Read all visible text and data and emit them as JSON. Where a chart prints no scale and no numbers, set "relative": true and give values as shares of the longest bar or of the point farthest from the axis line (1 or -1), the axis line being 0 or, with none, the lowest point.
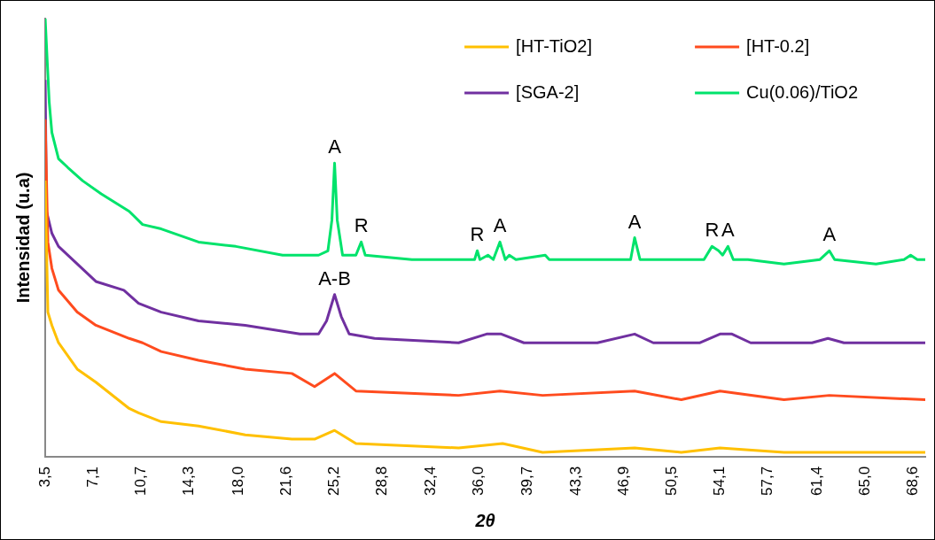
{
  "chart_data": {
    "type": "line",
    "relative": true,
    "xlabel": "2θ",
    "ylabel": "Intensidad (u.a)",
    "legend": "top right",
    "marker": "none",
    "line_style": "solid",
    "grid": false,
    "xlim": [
      3.5,
      69.5
    ],
    "xticks": [
      {
        "value": 3.5,
        "label": "3,5"
      },
      {
        "value": 7.1,
        "label": "7,1"
      },
      {
        "value": 10.7,
        "label": "10,7"
      },
      {
        "value": 14.3,
        "label": "14,3"
      },
      {
        "value": 18.0,
        "label": "18,0"
      },
      {
        "value": 21.6,
        "label": "21,6"
      },
      {
        "value": 25.2,
        "label": "25,2"
      },
      {
        "value": 28.8,
        "label": "28,8"
      },
      {
        "value": 32.4,
        "label": "32,4"
      },
      {
        "value": 36.0,
        "label": "36,0"
      },
      {
        "value": 39.7,
        "label": "39,7"
      },
      {
        "value": 43.3,
        "label": "43,3"
      },
      {
        "value": 46.9,
        "label": "46,9"
      },
      {
        "value": 50.5,
        "label": "50,5"
      },
      {
        "value": 54.1,
        "label": "54,1"
      },
      {
        "value": 57.7,
        "label": "57,7"
      },
      {
        "value": 61.4,
        "label": "61,4"
      },
      {
        "value": 65.0,
        "label": "65,0"
      },
      {
        "value": 68.6,
        "label": "68,6"
      }
    ],
    "series": [
      {
        "name": "[HT-TiO2]",
        "color": "#ffc000",
        "x": [
          3.5,
          3.7,
          4.0,
          4.5,
          5.9,
          7.3,
          9.8,
          10.5,
          12.2,
          15.0,
          18.5,
          22.0,
          23.7,
          25.2,
          26.8,
          34.5,
          37.8,
          40.8,
          47.7,
          51.2,
          54.1,
          58.9,
          62.3,
          69.5
        ],
        "values": [
          0.63,
          0.33,
          0.3,
          0.26,
          0.2,
          0.17,
          0.11,
          0.1,
          0.08,
          0.07,
          0.05,
          0.04,
          0.04,
          0.06,
          0.03,
          0.02,
          0.03,
          0.01,
          0.02,
          0.01,
          0.02,
          0.01,
          0.01,
          0.01
        ]
      },
      {
        "name": "[HT-0.2]",
        "color": "#ff4b1e",
        "x": [
          3.5,
          3.7,
          4.0,
          4.5,
          5.9,
          7.3,
          9.8,
          10.8,
          12.2,
          15.0,
          18.5,
          22.0,
          23.7,
          25.2,
          26.8,
          34.5,
          37.6,
          40.8,
          47.7,
          51.2,
          54.1,
          58.9,
          62.3,
          69.5
        ],
        "values": [
          0.77,
          0.49,
          0.43,
          0.38,
          0.33,
          0.3,
          0.27,
          0.26,
          0.24,
          0.22,
          0.2,
          0.19,
          0.16,
          0.19,
          0.15,
          0.14,
          0.15,
          0.14,
          0.15,
          0.13,
          0.15,
          0.13,
          0.14,
          0.13
        ]
      },
      {
        "name": "[SGA-2]",
        "color": "#7030a0",
        "x": [
          3.5,
          3.6,
          4.0,
          4.5,
          5.9,
          7.3,
          9.4,
          10.5,
          12.2,
          15.0,
          18.5,
          22.6,
          24.0,
          24.6,
          25.2,
          25.7,
          26.3,
          28.2,
          34.5,
          36.6,
          37.7,
          39.4,
          44.9,
          47.7,
          49.1,
          52.6,
          54.1,
          55.0,
          56.4,
          61.0,
          62.2,
          63.4,
          69.5
        ],
        "values": [
          0.86,
          0.56,
          0.51,
          0.48,
          0.44,
          0.4,
          0.38,
          0.35,
          0.33,
          0.31,
          0.3,
          0.28,
          0.28,
          0.31,
          0.37,
          0.32,
          0.28,
          0.27,
          0.26,
          0.28,
          0.28,
          0.26,
          0.26,
          0.28,
          0.26,
          0.26,
          0.28,
          0.28,
          0.26,
          0.26,
          0.27,
          0.26,
          0.26
        ]
      },
      {
        "name": "Cu(0.06)/TiO2",
        "color": "#00e36b",
        "x": [
          3.5,
          3.8,
          4.0,
          4.5,
          5.2,
          6.3,
          7.7,
          9.8,
          10.8,
          12.2,
          15.0,
          17.8,
          21.3,
          24.0,
          24.7,
          25.0,
          25.2,
          25.4,
          25.8,
          26.8,
          27.2,
          27.5,
          31.0,
          35.7,
          35.9,
          36.1,
          36.7,
          37.1,
          37.6,
          38.0,
          38.3,
          38.8,
          41.0,
          41.3,
          44.9,
          47.4,
          47.7,
          48.1,
          50.5,
          52.9,
          53.5,
          54.0,
          54.3,
          54.7,
          55.1,
          56.2,
          58.9,
          61.6,
          62.3,
          62.7,
          65.8,
          67.9,
          68.4,
          68.9,
          69.5
        ],
        "values": [
          1.0,
          0.81,
          0.74,
          0.68,
          0.66,
          0.63,
          0.6,
          0.56,
          0.53,
          0.52,
          0.49,
          0.48,
          0.46,
          0.46,
          0.47,
          0.54,
          0.67,
          0.54,
          0.46,
          0.46,
          0.49,
          0.46,
          0.45,
          0.45,
          0.47,
          0.45,
          0.46,
          0.45,
          0.49,
          0.45,
          0.46,
          0.45,
          0.46,
          0.45,
          0.45,
          0.45,
          0.5,
          0.45,
          0.45,
          0.45,
          0.48,
          0.47,
          0.46,
          0.48,
          0.45,
          0.45,
          0.44,
          0.45,
          0.47,
          0.45,
          0.44,
          0.45,
          0.46,
          0.45,
          0.45
        ]
      }
    ],
    "annotations": [
      {
        "text": "A",
        "x": 25.2,
        "y": 0.67
      },
      {
        "text": "R",
        "x": 27.2,
        "y": 0.49
      },
      {
        "text": "R",
        "x": 35.9,
        "y": 0.47
      },
      {
        "text": "A",
        "x": 37.6,
        "y": 0.49
      },
      {
        "text": "A",
        "x": 47.7,
        "y": 0.5
      },
      {
        "text": "R",
        "x": 53.5,
        "y": 0.48
      },
      {
        "text": "A",
        "x": 54.7,
        "y": 0.48
      },
      {
        "text": "A",
        "x": 62.3,
        "y": 0.47
      },
      {
        "text": "A-B",
        "x": 25.2,
        "y": 0.37
      }
    ]
  }
}
